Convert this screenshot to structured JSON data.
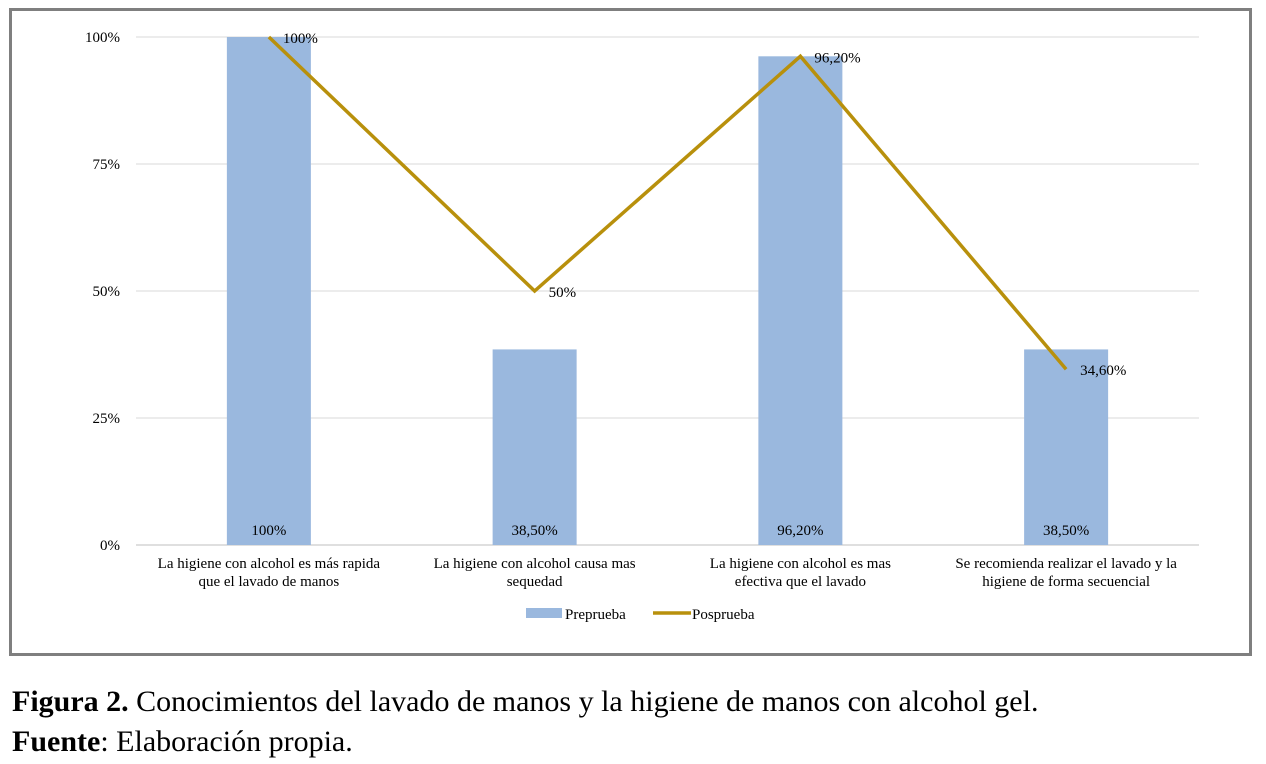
{
  "chart_data": {
    "type": "bar",
    "categories": [
      [
        "La higiene con alcohol es más rapida",
        "que el lavado de manos"
      ],
      [
        "La higiene con alcohol causa mas",
        "sequedad"
      ],
      [
        "La higiene con alcohol es mas",
        "efectiva que el lavado"
      ],
      [
        "Se recomienda realizar el lavado y la",
        "higiene de forma secuencial"
      ]
    ],
    "series": [
      {
        "name": "Preprueba",
        "kind": "bar",
        "color": "#9ab8de",
        "values": [
          100,
          38.5,
          96.2,
          38.5
        ],
        "labels": [
          "100%",
          "38,50%",
          "96,20%",
          "38,50%"
        ]
      },
      {
        "name": "Posprueba",
        "kind": "line",
        "color": "#b8900c",
        "values": [
          100,
          50,
          96.2,
          34.6
        ],
        "labels": [
          "100%",
          "50%",
          "96,20%",
          "34,60%"
        ]
      }
    ],
    "y_ticks": [
      {
        "value": 0,
        "label": "0%"
      },
      {
        "value": 25,
        "label": "25%"
      },
      {
        "value": 50,
        "label": "50%"
      },
      {
        "value": 75,
        "label": "75%"
      },
      {
        "value": 100,
        "label": "100%"
      }
    ],
    "ylim": [
      0,
      100
    ],
    "grid": true,
    "legend_position": "bottom"
  },
  "caption": {
    "figure_label": "Figura 2.",
    "figure_text": " Conocimientos del lavado de manos y la higiene de manos con alcohol gel.",
    "source_label": "Fuente",
    "source_text": ": Elaboración propia."
  }
}
